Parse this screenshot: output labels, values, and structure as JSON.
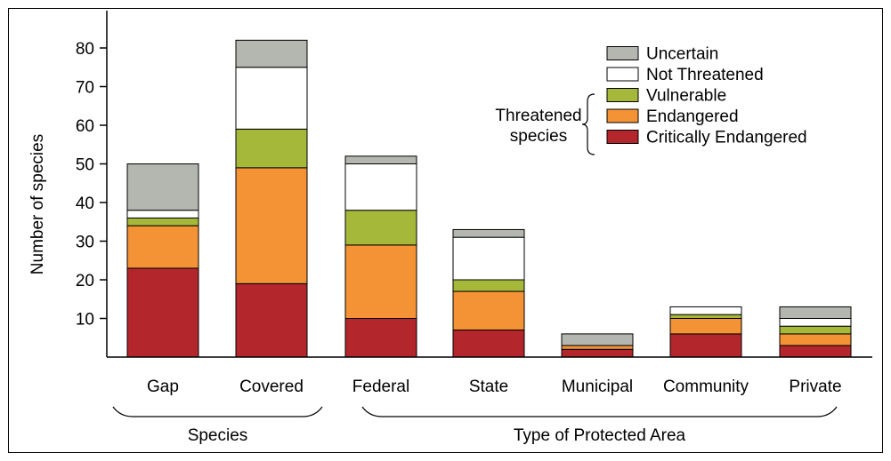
{
  "chart_data": {
    "type": "bar",
    "stacked": true,
    "categories": [
      "Gap",
      "Covered",
      "Federal",
      "State",
      "Municipal",
      "Community",
      "Private"
    ],
    "ylabel": "Number of species",
    "ylim": [
      0,
      85
    ],
    "yticks": [
      10,
      20,
      30,
      40,
      50,
      60,
      70,
      80
    ],
    "grid": false,
    "legend_position": "top-right",
    "series": [
      {
        "name": "Critically Endangered",
        "color": "#b2262c",
        "values": [
          23,
          19,
          10,
          7,
          2,
          6,
          3
        ]
      },
      {
        "name": "Endangered",
        "color": "#f39336",
        "values": [
          11,
          30,
          19,
          10,
          1,
          4,
          3
        ]
      },
      {
        "name": "Vulnerable",
        "color": "#a5b83a",
        "values": [
          2,
          10,
          9,
          3,
          0,
          1,
          2
        ]
      },
      {
        "name": "Not Threatened",
        "color": "#ffffff",
        "values": [
          2,
          16,
          12,
          11,
          0,
          2,
          2
        ]
      },
      {
        "name": "Uncertain",
        "color": "#b4b6b0",
        "values": [
          12,
          7,
          2,
          2,
          3,
          0,
          3
        ]
      }
    ],
    "legend_order": [
      "Uncertain",
      "Not Threatened",
      "Vulnerable",
      "Endangered",
      "Critically Endangered"
    ],
    "bracket_label": "Threatened species",
    "groups": [
      {
        "label": "Species",
        "categories": [
          "Gap",
          "Covered"
        ]
      },
      {
        "label": "Type of Protected Area",
        "categories": [
          "Federal",
          "State",
          "Municipal",
          "Community",
          "Private"
        ]
      }
    ]
  }
}
